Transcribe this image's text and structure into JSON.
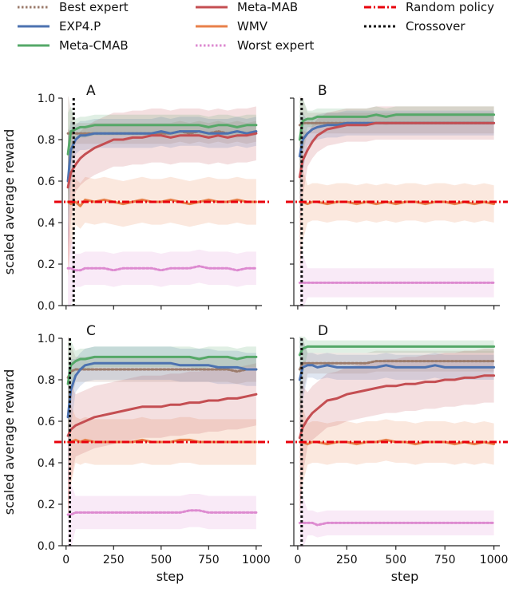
{
  "chart_data": {
    "type": "line",
    "legend": {
      "placement": "top",
      "entries": [
        {
          "key": "best",
          "label": "Best expert",
          "color": "#9b7b6b",
          "dash": "dotted"
        },
        {
          "key": "exp4",
          "label": "EXP4.P",
          "color": "#4c72b0",
          "dash": "solid"
        },
        {
          "key": "cmab",
          "label": "Meta-CMAB",
          "color": "#55a868",
          "dash": "solid"
        },
        {
          "key": "mab",
          "label": "Meta-MAB",
          "color": "#c44e52",
          "dash": "solid"
        },
        {
          "key": "wmv",
          "label": "WMV",
          "color": "#e8804a",
          "dash": "solid"
        },
        {
          "key": "worst",
          "label": "Worst expert",
          "color": "#dd8ad0",
          "dash": "dotted"
        },
        {
          "key": "random",
          "label": "Random policy",
          "color": "#e8000b",
          "dash": "dashdot"
        },
        {
          "key": "cross",
          "label": "Crossover",
          "color": "#111111",
          "dash": "dotted"
        }
      ]
    },
    "xlabel": "step",
    "ylabel": "scaled average reward",
    "xlim": [
      -20,
      1030
    ],
    "ylim": [
      0.0,
      1.0
    ],
    "xticks": [
      0,
      250,
      500,
      750,
      1000
    ],
    "yticks": [
      0.0,
      0.2,
      0.4,
      0.6,
      0.8,
      1.0
    ],
    "x": [
      10,
      25,
      50,
      75,
      100,
      150,
      200,
      250,
      300,
      350,
      400,
      450,
      500,
      550,
      600,
      650,
      700,
      750,
      800,
      850,
      900,
      950,
      1000
    ],
    "panels": [
      {
        "label": "A",
        "crossover": 40,
        "random": 0.5,
        "series": {
          "best": {
            "values": [
              0.83,
              0.83,
              0.83,
              0.83,
              0.83,
              0.83,
              0.83,
              0.83,
              0.83,
              0.83,
              0.83,
              0.83,
              0.83,
              0.83,
              0.84,
              0.83,
              0.84,
              0.83,
              0.84,
              0.83,
              0.84,
              0.83,
              0.84
            ],
            "band": 0.05
          },
          "exp4": {
            "values": [
              0.6,
              0.75,
              0.8,
              0.82,
              0.82,
              0.83,
              0.83,
              0.83,
              0.83,
              0.83,
              0.83,
              0.83,
              0.84,
              0.83,
              0.84,
              0.84,
              0.84,
              0.83,
              0.83,
              0.83,
              0.84,
              0.83,
              0.84
            ],
            "band": 0.07
          },
          "cmab": {
            "values": [
              0.73,
              0.84,
              0.85,
              0.86,
              0.86,
              0.87,
              0.87,
              0.87,
              0.87,
              0.87,
              0.87,
              0.87,
              0.87,
              0.87,
              0.87,
              0.87,
              0.87,
              0.86,
              0.87,
              0.87,
              0.86,
              0.87,
              0.87
            ],
            "band": 0.05
          },
          "mab": {
            "values": [
              0.57,
              0.64,
              0.68,
              0.71,
              0.73,
              0.76,
              0.78,
              0.8,
              0.8,
              0.81,
              0.81,
              0.82,
              0.82,
              0.81,
              0.82,
              0.82,
              0.82,
              0.81,
              0.82,
              0.81,
              0.82,
              0.82,
              0.83
            ],
            "band": 0.13
          },
          "wmv": {
            "values": [
              0.5,
              0.49,
              0.5,
              0.48,
              0.51,
              0.5,
              0.51,
              0.5,
              0.49,
              0.5,
              0.51,
              0.5,
              0.5,
              0.51,
              0.5,
              0.49,
              0.5,
              0.51,
              0.5,
              0.5,
              0.51,
              0.5,
              0.5
            ],
            "band": 0.11
          },
          "worst": {
            "values": [
              0.18,
              0.18,
              0.17,
              0.17,
              0.18,
              0.18,
              0.18,
              0.17,
              0.18,
              0.18,
              0.18,
              0.18,
              0.17,
              0.18,
              0.18,
              0.18,
              0.19,
              0.18,
              0.18,
              0.18,
              0.17,
              0.18,
              0.18
            ],
            "band": 0.08
          }
        }
      },
      {
        "label": "B",
        "crossover": 20,
        "random": 0.5,
        "series": {
          "best": {
            "values": [
              0.87,
              0.88,
              0.88,
              0.88,
              0.88,
              0.88,
              0.88,
              0.88,
              0.88,
              0.88,
              0.88,
              0.88,
              0.88,
              0.88,
              0.88,
              0.88,
              0.88,
              0.88,
              0.88,
              0.88,
              0.88,
              0.88,
              0.88
            ],
            "band": 0.05
          },
          "exp4": {
            "values": [
              0.72,
              0.8,
              0.83,
              0.85,
              0.86,
              0.87,
              0.87,
              0.88,
              0.88,
              0.88,
              0.88,
              0.88,
              0.88,
              0.88,
              0.88,
              0.88,
              0.88,
              0.88,
              0.88,
              0.88,
              0.88,
              0.88,
              0.88
            ],
            "band": 0.06
          },
          "cmab": {
            "values": [
              0.8,
              0.89,
              0.9,
              0.9,
              0.91,
              0.91,
              0.91,
              0.91,
              0.91,
              0.91,
              0.92,
              0.91,
              0.92,
              0.92,
              0.92,
              0.92,
              0.92,
              0.92,
              0.92,
              0.92,
              0.92,
              0.92,
              0.92
            ],
            "band": 0.04
          },
          "mab": {
            "values": [
              0.62,
              0.7,
              0.75,
              0.79,
              0.82,
              0.85,
              0.86,
              0.87,
              0.87,
              0.87,
              0.88,
              0.88,
              0.88,
              0.88,
              0.88,
              0.88,
              0.88,
              0.88,
              0.88,
              0.88,
              0.88,
              0.88,
              0.88
            ],
            "band": 0.08
          },
          "wmv": {
            "values": [
              0.5,
              0.5,
              0.49,
              0.5,
              0.5,
              0.49,
              0.5,
              0.5,
              0.49,
              0.5,
              0.49,
              0.5,
              0.49,
              0.5,
              0.5,
              0.49,
              0.5,
              0.5,
              0.49,
              0.5,
              0.49,
              0.5,
              0.49
            ],
            "band": 0.09
          },
          "worst": {
            "values": [
              0.11,
              0.11,
              0.11,
              0.11,
              0.11,
              0.11,
              0.11,
              0.11,
              0.11,
              0.11,
              0.11,
              0.11,
              0.11,
              0.11,
              0.11,
              0.11,
              0.11,
              0.11,
              0.11,
              0.11,
              0.11,
              0.11,
              0.11
            ],
            "band": 0.07
          }
        }
      },
      {
        "label": "C",
        "crossover": 20,
        "random": 0.5,
        "series": {
          "best": {
            "values": [
              0.81,
              0.84,
              0.85,
              0.85,
              0.85,
              0.85,
              0.85,
              0.85,
              0.85,
              0.85,
              0.85,
              0.85,
              0.85,
              0.85,
              0.85,
              0.85,
              0.85,
              0.85,
              0.85,
              0.85,
              0.84,
              0.85,
              0.85
            ],
            "band": 0.06
          },
          "exp4": {
            "values": [
              0.62,
              0.75,
              0.82,
              0.85,
              0.87,
              0.88,
              0.88,
              0.88,
              0.88,
              0.88,
              0.88,
              0.88,
              0.88,
              0.88,
              0.87,
              0.87,
              0.87,
              0.87,
              0.86,
              0.86,
              0.86,
              0.85,
              0.85
            ],
            "band": 0.08
          },
          "cmab": {
            "values": [
              0.78,
              0.87,
              0.89,
              0.9,
              0.9,
              0.91,
              0.91,
              0.91,
              0.91,
              0.91,
              0.91,
              0.91,
              0.91,
              0.91,
              0.91,
              0.91,
              0.9,
              0.91,
              0.91,
              0.91,
              0.9,
              0.91,
              0.91
            ],
            "band": 0.05
          },
          "mab": {
            "values": [
              0.53,
              0.56,
              0.58,
              0.59,
              0.6,
              0.62,
              0.63,
              0.64,
              0.65,
              0.66,
              0.67,
              0.67,
              0.67,
              0.68,
              0.68,
              0.69,
              0.69,
              0.7,
              0.7,
              0.71,
              0.71,
              0.72,
              0.73
            ],
            "band": 0.15
          },
          "wmv": {
            "values": [
              0.5,
              0.5,
              0.51,
              0.5,
              0.51,
              0.5,
              0.5,
              0.5,
              0.5,
              0.5,
              0.51,
              0.5,
              0.5,
              0.5,
              0.51,
              0.51,
              0.5,
              0.5,
              0.5,
              0.5,
              0.5,
              0.5,
              0.5
            ],
            "band": 0.11
          },
          "worst": {
            "values": [
              0.15,
              0.15,
              0.16,
              0.16,
              0.16,
              0.16,
              0.16,
              0.16,
              0.16,
              0.16,
              0.16,
              0.16,
              0.16,
              0.16,
              0.16,
              0.17,
              0.17,
              0.16,
              0.16,
              0.16,
              0.16,
              0.16,
              0.16
            ],
            "band": 0.08
          }
        }
      },
      {
        "label": "D",
        "crossover": 20,
        "random": 0.5,
        "series": {
          "best": {
            "values": [
              0.85,
              0.88,
              0.88,
              0.88,
              0.88,
              0.88,
              0.88,
              0.88,
              0.88,
              0.88,
              0.89,
              0.89,
              0.89,
              0.89,
              0.89,
              0.89,
              0.89,
              0.89,
              0.89,
              0.89,
              0.89,
              0.89,
              0.89
            ],
            "band": 0.05
          },
          "exp4": {
            "values": [
              0.8,
              0.86,
              0.87,
              0.87,
              0.86,
              0.87,
              0.86,
              0.86,
              0.86,
              0.86,
              0.86,
              0.87,
              0.86,
              0.86,
              0.86,
              0.86,
              0.87,
              0.86,
              0.86,
              0.86,
              0.86,
              0.86,
              0.86
            ],
            "band": 0.06
          },
          "cmab": {
            "values": [
              0.92,
              0.95,
              0.96,
              0.96,
              0.96,
              0.96,
              0.96,
              0.96,
              0.96,
              0.96,
              0.96,
              0.96,
              0.96,
              0.96,
              0.96,
              0.96,
              0.96,
              0.96,
              0.96,
              0.96,
              0.96,
              0.96,
              0.96
            ],
            "band": 0.03
          },
          "mab": {
            "values": [
              0.52,
              0.57,
              0.61,
              0.64,
              0.66,
              0.7,
              0.71,
              0.73,
              0.74,
              0.75,
              0.76,
              0.77,
              0.77,
              0.78,
              0.78,
              0.79,
              0.79,
              0.8,
              0.8,
              0.81,
              0.81,
              0.82,
              0.82
            ],
            "band": 0.13
          },
          "wmv": {
            "values": [
              0.5,
              0.5,
              0.49,
              0.5,
              0.5,
              0.49,
              0.5,
              0.5,
              0.49,
              0.5,
              0.5,
              0.51,
              0.5,
              0.5,
              0.49,
              0.5,
              0.5,
              0.5,
              0.49,
              0.5,
              0.49,
              0.5,
              0.49
            ],
            "band": 0.1
          },
          "worst": {
            "values": [
              0.11,
              0.11,
              0.11,
              0.11,
              0.1,
              0.11,
              0.11,
              0.11,
              0.11,
              0.11,
              0.11,
              0.11,
              0.11,
              0.11,
              0.11,
              0.11,
              0.11,
              0.11,
              0.11,
              0.11,
              0.11,
              0.11,
              0.11
            ],
            "band": 0.06
          }
        }
      }
    ]
  }
}
